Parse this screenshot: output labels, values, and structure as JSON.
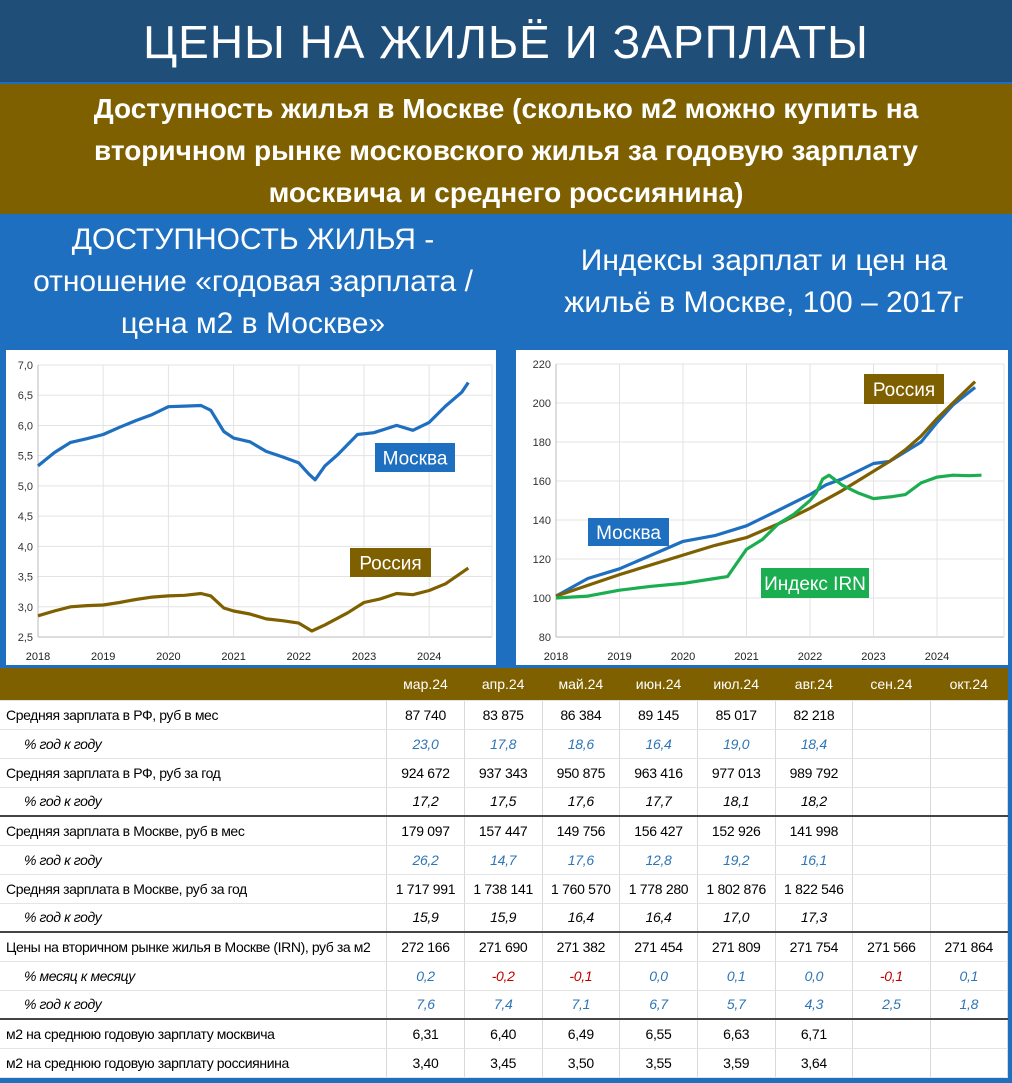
{
  "title": "ЦЕНЫ НА ЖИЛЬЁ И ЗАРПЛАТЫ",
  "subtitle": "Доступность жилья в Москве (сколько м2 можно купить на вторичном рынке московского жилья за годовую зарплату москвича и среднего россиянина)",
  "left_heading": "ДОСТУПНОСТЬ ЖИЛЬЯ - отношение «годовая зарплата / цена м2 в Москве»",
  "right_heading": "Индексы зарплат и цен на жильё в Москве, 100 – 2017г",
  "colors": {
    "moscow": "#1f6fc0",
    "russia": "#7f6000",
    "irn": "#1aae50",
    "title_bg": "#1f4e79"
  },
  "chart_data": [
    {
      "type": "line",
      "title": "ДОСТУПНОСТЬ ЖИЛЬЯ",
      "xlim": [
        2018,
        2024.9
      ],
      "ylim": [
        2.5,
        7.0
      ],
      "xticks": [
        "2018",
        "2019",
        "2020",
        "2021",
        "2022",
        "2023",
        "2024"
      ],
      "yticks": [
        "2,5",
        "3,0",
        "3,5",
        "4,0",
        "4,5",
        "5,0",
        "5,5",
        "6,0",
        "6,5",
        "7,0"
      ],
      "grid": true,
      "series": [
        {
          "name": "Москва",
          "color": "#1f6fc0",
          "x": [
            2018,
            2018.25,
            2018.5,
            2018.75,
            2019,
            2019.25,
            2019.5,
            2019.75,
            2020,
            2020.25,
            2020.5,
            2020.65,
            2020.85,
            2021,
            2021.25,
            2021.5,
            2021.75,
            2022,
            2022.15,
            2022.25,
            2022.4,
            2022.6,
            2022.9,
            2023.15,
            2023.5,
            2023.75,
            2024,
            2024.25,
            2024.5,
            2024.6
          ],
          "y": [
            5.33,
            5.55,
            5.72,
            5.78,
            5.85,
            5.97,
            6.08,
            6.18,
            6.31,
            6.32,
            6.33,
            6.25,
            5.9,
            5.79,
            5.73,
            5.57,
            5.48,
            5.38,
            5.2,
            5.1,
            5.33,
            5.52,
            5.85,
            5.88,
            6.0,
            5.92,
            6.05,
            6.32,
            6.55,
            6.71
          ]
        },
        {
          "name": "Россия",
          "color": "#7f6000",
          "x": [
            2018,
            2018.25,
            2018.5,
            2018.75,
            2019,
            2019.25,
            2019.5,
            2019.75,
            2020,
            2020.25,
            2020.5,
            2020.65,
            2020.85,
            2021,
            2021.25,
            2021.5,
            2021.75,
            2022,
            2022.2,
            2022.4,
            2022.75,
            2023,
            2023.25,
            2023.5,
            2023.75,
            2024,
            2024.25,
            2024.6
          ],
          "y": [
            2.85,
            2.93,
            3.0,
            3.02,
            3.03,
            3.07,
            3.12,
            3.16,
            3.18,
            3.19,
            3.22,
            3.18,
            2.98,
            2.93,
            2.88,
            2.8,
            2.77,
            2.73,
            2.6,
            2.7,
            2.9,
            3.07,
            3.13,
            3.22,
            3.2,
            3.27,
            3.38,
            3.64
          ]
        }
      ]
    },
    {
      "type": "line",
      "title": "Индексы зарплат и цен на жильё в Москве",
      "xlim": [
        2018,
        2024.9
      ],
      "ylim": [
        80,
        220
      ],
      "xticks": [
        "2018",
        "2019",
        "2020",
        "2021",
        "2022",
        "2023",
        "2024"
      ],
      "yticks": [
        "80",
        "100",
        "120",
        "140",
        "160",
        "180",
        "200",
        "220"
      ],
      "grid": true,
      "series": [
        {
          "name": "Москва",
          "color": "#1f6fc0",
          "x": [
            2018,
            2018.5,
            2019,
            2019.5,
            2020,
            2020.5,
            2021,
            2021.5,
            2022,
            2022.25,
            2022.5,
            2023,
            2023.25,
            2023.5,
            2023.75,
            2024,
            2024.25,
            2024.6
          ],
          "y": [
            101,
            110,
            115,
            122,
            129,
            132,
            137,
            145,
            153,
            158,
            161,
            169,
            170,
            175,
            180,
            190,
            199,
            208
          ]
        },
        {
          "name": "Россия",
          "color": "#7f6000",
          "x": [
            2018,
            2019,
            2020,
            2020.5,
            2021,
            2021.5,
            2022,
            2022.5,
            2023,
            2023.25,
            2023.5,
            2023.75,
            2024,
            2024.25,
            2024.6
          ],
          "y": [
            101,
            112,
            122,
            127,
            131,
            138,
            146,
            155,
            165,
            170,
            176,
            183,
            192,
            200,
            211
          ]
        },
        {
          "name": "Индекс IRN",
          "color": "#1aae50",
          "x": [
            2018,
            2018.5,
            2019,
            2019.5,
            2020,
            2020.5,
            2020.7,
            2020.85,
            2021,
            2021.25,
            2021.5,
            2021.75,
            2022,
            2022.1,
            2022.2,
            2022.3,
            2022.5,
            2022.75,
            2023,
            2023.3,
            2023.5,
            2023.75,
            2024,
            2024.25,
            2024.5,
            2024.7
          ],
          "y": [
            100,
            101,
            104,
            106,
            107.5,
            110,
            111,
            118,
            125,
            130,
            138,
            143,
            150,
            154,
            161,
            163,
            158,
            154,
            151,
            152,
            153,
            159,
            162,
            163,
            162.7,
            163
          ]
        }
      ]
    }
  ],
  "table": {
    "months": [
      "мар.24",
      "апр.24",
      "май.24",
      "июн.24",
      "июл.24",
      "авг.24",
      "сен.24",
      "окт.24"
    ],
    "rows": [
      {
        "label": "Средняя зарплата в РФ, руб в мес",
        "values": [
          "87 740",
          "83 875",
          "86 384",
          "89 145",
          "85 017",
          "82 218",
          "",
          ""
        ]
      },
      {
        "label": "% год к году",
        "sub": true,
        "style": "blue",
        "values": [
          "23,0",
          "17,8",
          "18,6",
          "16,4",
          "19,0",
          "18,4",
          "",
          ""
        ]
      },
      {
        "label": "Средняя зарплата в РФ, руб за год",
        "values": [
          "924 672",
          "937 343",
          "950 875",
          "963 416",
          "977 013",
          "989 792",
          "",
          ""
        ]
      },
      {
        "label": "% год к году",
        "sub": true,
        "style": "it",
        "thick": true,
        "values": [
          "17,2",
          "17,5",
          "17,6",
          "17,7",
          "18,1",
          "18,2",
          "",
          ""
        ]
      },
      {
        "label": "Средняя зарплата в Москве, руб в мес",
        "values": [
          "179 097",
          "157 447",
          "149 756",
          "156 427",
          "152 926",
          "141 998",
          "",
          ""
        ]
      },
      {
        "label": "% год к году",
        "sub": true,
        "style": "blue",
        "values": [
          "26,2",
          "14,7",
          "17,6",
          "12,8",
          "19,2",
          "16,1",
          "",
          ""
        ]
      },
      {
        "label": "Средняя зарплата в Москве, руб за год",
        "values": [
          "1 717 991",
          "1 738 141",
          "1 760 570",
          "1 778 280",
          "1 802 876",
          "1 822 546",
          "",
          ""
        ]
      },
      {
        "label": "% год к году",
        "sub": true,
        "style": "it",
        "thick": true,
        "values": [
          "15,9",
          "15,9",
          "16,4",
          "16,4",
          "17,0",
          "17,3",
          "",
          ""
        ]
      },
      {
        "label": "Цены на вторичном рынке жилья в Москве (IRN), руб за м2",
        "values": [
          "272 166",
          "271 690",
          "271 382",
          "271 454",
          "271 809",
          "271 754",
          "271 566",
          "271 864"
        ]
      },
      {
        "label": "% месяц к месяцу",
        "sub": true,
        "style": "sign",
        "values": [
          "0,2",
          "-0,2",
          "-0,1",
          "0,0",
          "0,1",
          "0,0",
          "-0,1",
          "0,1"
        ]
      },
      {
        "label": "% год к году",
        "sub": true,
        "style": "blue",
        "thick": true,
        "values": [
          "7,6",
          "7,4",
          "7,1",
          "6,7",
          "5,7",
          "4,3",
          "2,5",
          "1,8"
        ]
      },
      {
        "label": "м2 на среднюю годовую зарплату москвича",
        "values": [
          "6,31",
          "6,40",
          "6,49",
          "6,55",
          "6,63",
          "6,71",
          "",
          ""
        ]
      },
      {
        "label": "м2 на среднюю годовую зарплату россиянина",
        "values": [
          "3,40",
          "3,45",
          "3,50",
          "3,55",
          "3,59",
          "3,64",
          "",
          ""
        ]
      }
    ]
  }
}
